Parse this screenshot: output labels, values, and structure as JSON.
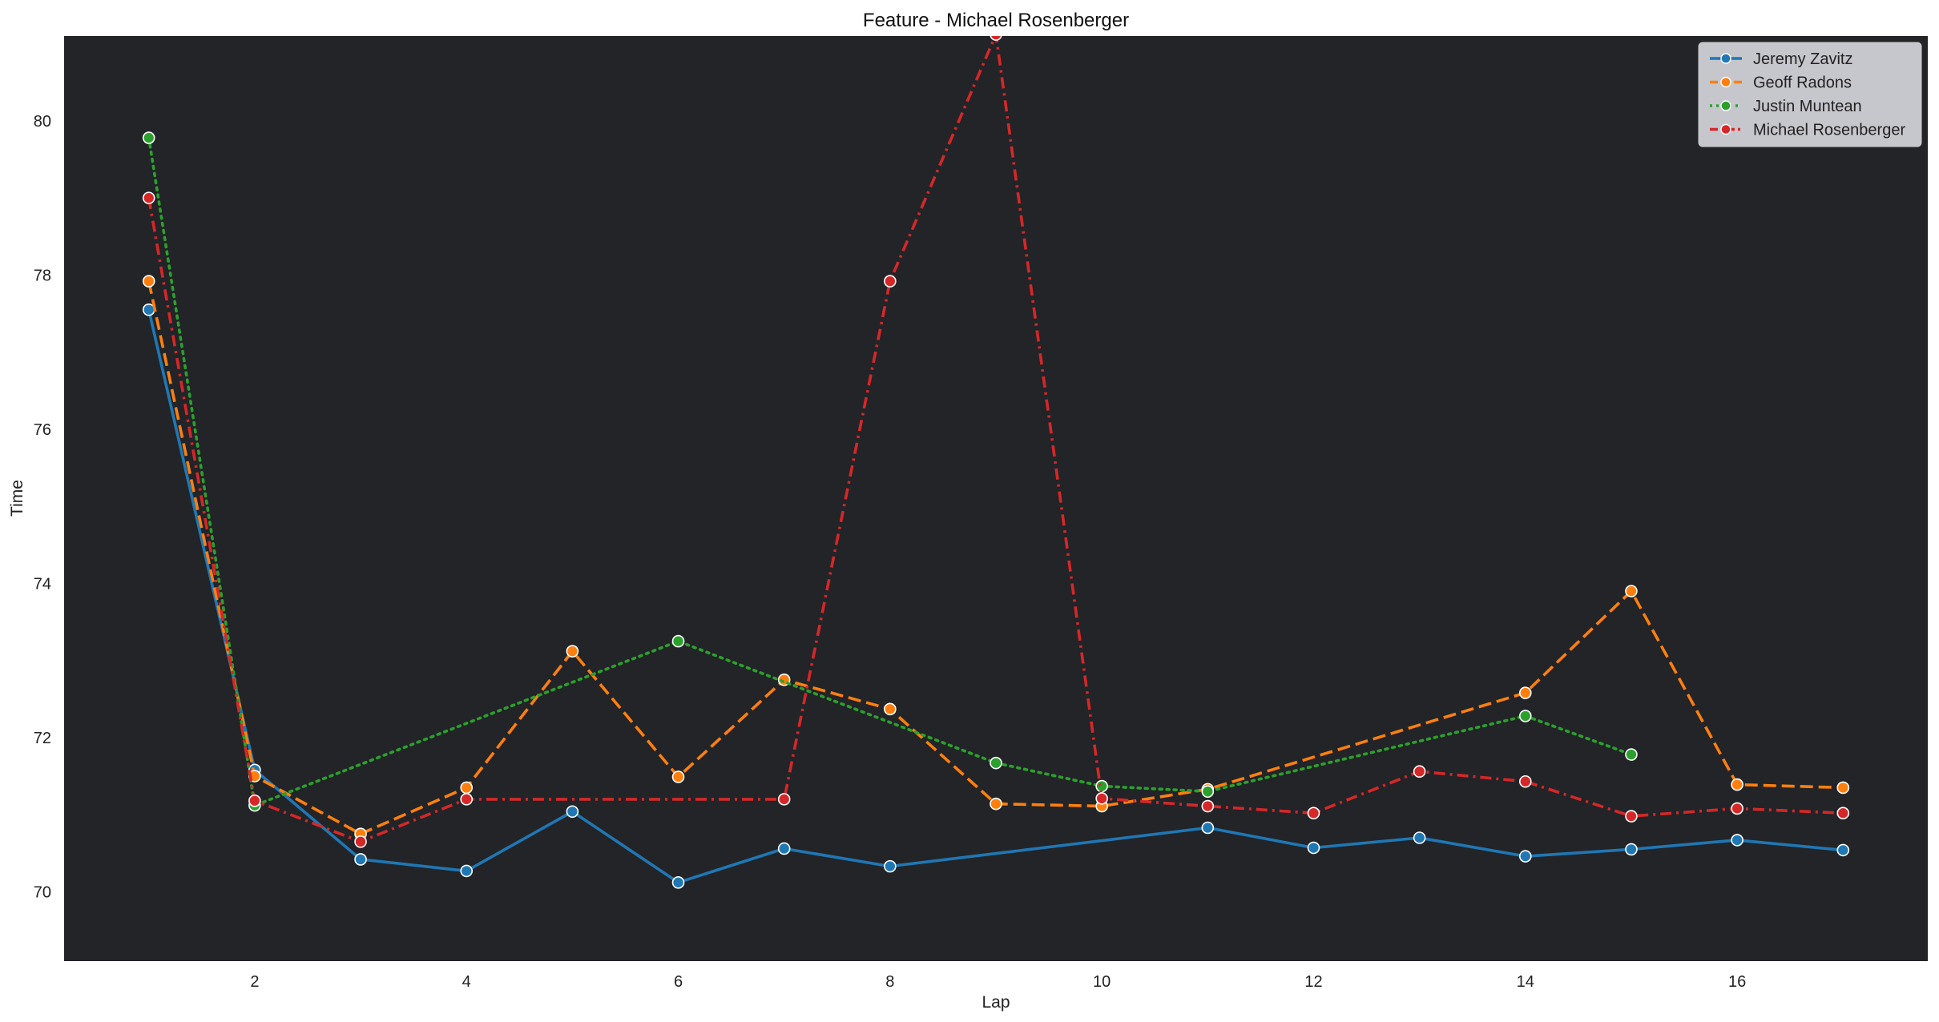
{
  "chart_data": {
    "type": "line",
    "title": "Feature - Michael Rosenberger",
    "xlabel": "Lap",
    "ylabel": "Time",
    "xlim": [
      0.2,
      17.8
    ],
    "ylim": [
      69.1,
      81.1
    ],
    "xticks": [
      2,
      4,
      6,
      8,
      10,
      12,
      14,
      16
    ],
    "yticks": [
      70,
      72,
      74,
      76,
      78,
      80
    ],
    "grid": false,
    "legend_position": "top-right",
    "background": "#222428",
    "series": [
      {
        "name": "Jeremy Zavitz",
        "color": "#1f77b4",
        "dash": "solid",
        "x": [
          1,
          2,
          3,
          4,
          5,
          6,
          7,
          8,
          11,
          12,
          13,
          14,
          15,
          16,
          17
        ],
        "y": [
          77.55,
          71.58,
          70.42,
          70.27,
          71.04,
          70.12,
          70.56,
          70.33,
          70.83,
          70.57,
          70.7,
          70.46,
          70.55,
          70.67,
          70.54
        ]
      },
      {
        "name": "Geoff Radons",
        "color": "#ff7f0e",
        "dash": "dashed",
        "x": [
          1,
          2,
          3,
          4,
          5,
          6,
          7,
          8,
          9,
          10,
          11,
          14,
          15,
          16,
          17
        ],
        "y": [
          77.92,
          71.5,
          70.75,
          71.35,
          73.12,
          71.49,
          72.75,
          72.37,
          71.14,
          71.11,
          71.33,
          72.58,
          73.9,
          71.39,
          71.35
        ]
      },
      {
        "name": "Justin Muntean",
        "color": "#2ca02c",
        "dash": "dotted",
        "x": [
          1,
          2,
          6,
          9,
          10,
          11,
          14,
          15
        ],
        "y": [
          79.78,
          71.12,
          73.25,
          71.67,
          71.37,
          71.3,
          72.28,
          71.78
        ]
      },
      {
        "name": "Michael Rosenberger",
        "color": "#d62728",
        "dash": "dashdot",
        "x": [
          1,
          2,
          3,
          4,
          7,
          8,
          9,
          10,
          11,
          12,
          13,
          14,
          15,
          16,
          17
        ],
        "y": [
          79.0,
          71.18,
          70.65,
          71.2,
          71.2,
          77.92,
          81.12,
          71.21,
          71.11,
          71.02,
          71.56,
          71.43,
          70.98,
          71.08,
          71.02
        ]
      }
    ]
  }
}
